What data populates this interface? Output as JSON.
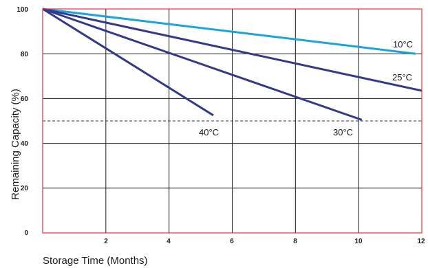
{
  "chart_data": {
    "type": "line",
    "xlabel": "Storage Time (Months)",
    "ylabel": "Remaining Capacity (%)",
    "xlim": [
      0,
      12
    ],
    "ylim": [
      0,
      100
    ],
    "x_ticks": [
      "2",
      "4",
      "6",
      "8",
      "10",
      "12"
    ],
    "y_ticks": [
      "0",
      "20",
      "40",
      "60",
      "80",
      "100"
    ],
    "grid": true,
    "reference_line": {
      "y": 50,
      "style": "dashed"
    },
    "series": [
      {
        "name": "10°C",
        "color": "#1aa3dc",
        "x": [
          0,
          11.8
        ],
        "y": [
          100,
          80
        ]
      },
      {
        "name": "25°C",
        "color": "#333a8c",
        "x": [
          0,
          12
        ],
        "y": [
          100,
          63.5
        ]
      },
      {
        "name": "30°C",
        "color": "#333a8c",
        "x": [
          0,
          10.1
        ],
        "y": [
          100,
          50.5
        ]
      },
      {
        "name": "40°C",
        "color": "#333a8c",
        "x": [
          0,
          5.4
        ],
        "y": [
          100,
          52.5
        ]
      }
    ],
    "colors": {
      "frame": "#e0323c",
      "grid": "#1a1a1a",
      "plot_bg": "#ffffff"
    }
  }
}
